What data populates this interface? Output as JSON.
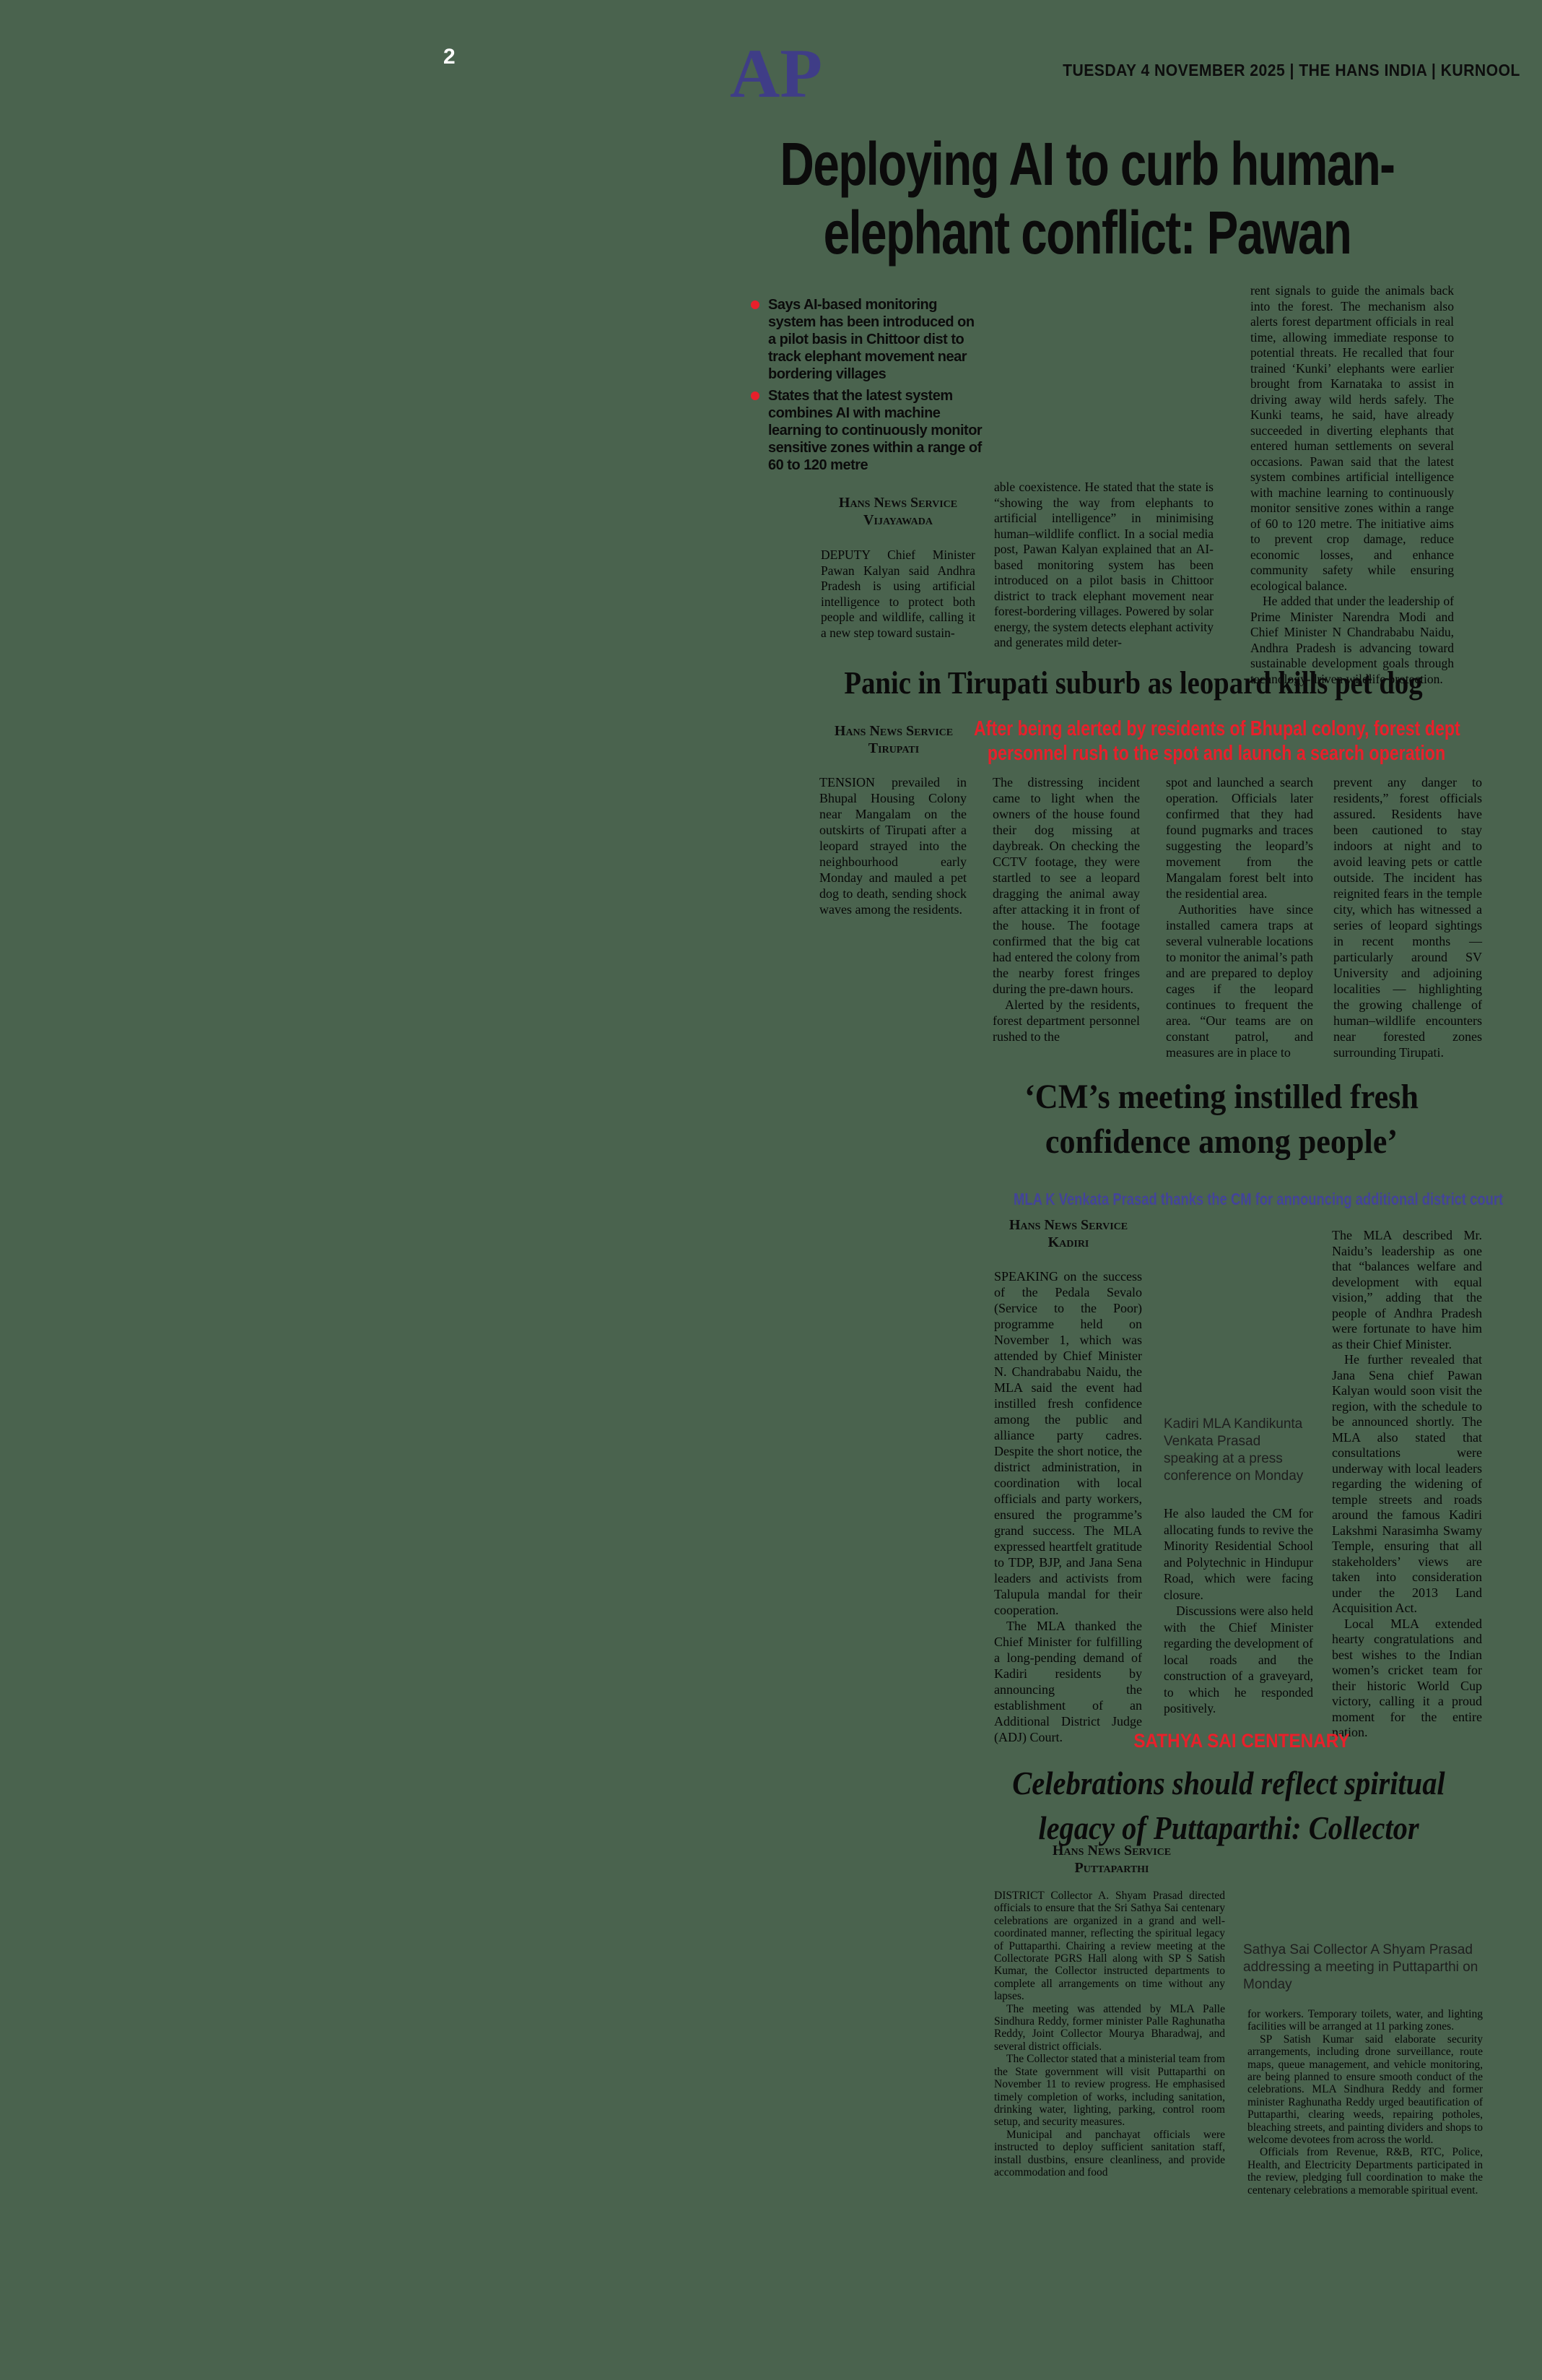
{
  "page": {
    "number": "2",
    "background": "#4a634e"
  },
  "header": {
    "logo": "AP",
    "logo_color": "#3f3d87",
    "meta": "TUESDAY 4 NOVEMBER  2025  | THE HANS INDIA | KURNOOL"
  },
  "colors": {
    "accent_red": "#e8202b",
    "subhead_blue": "#43439a",
    "logo_indigo": "#3f3d87"
  },
  "articles": [
    {
      "id": "ai-elephant-conflict",
      "headline_lines": [
        "Deploying AI to curb human-",
        "elephant conflict: Pawan"
      ],
      "bullets": [
        "Says AI-based monitoring system has been introduced on a pilot basis in Chittoor dist to track elephant movement near bordering villages",
        "States that the latest system combines AI with machine learning to continuously monitor sensitive zones within a range of 60 to 120 metre"
      ],
      "byline": {
        "agency": "Hans News Service",
        "place": "Vijayawada"
      },
      "columns": [
        {
          "paras": [
            "DEPUTY Chief Minister Pawan Kalyan said Andhra Pradesh is using artificial intelligence to protect both people and wildlife, calling it a new step toward sustain-"
          ]
        },
        {
          "paras": [
            "able coexistence. He stated that the state is “showing the way from elephants to artificial intelligence” in minimising human–wildlife conflict. In a social media post, Pawan Kalyan explained that an AI-based monitoring system has been introduced on a pilot basis in Chittoor district to track elephant movement near forest-bordering villages. Powered by solar energy, the system detects elephant activity and generates mild deter-"
          ]
        },
        {
          "paras": [
            "rent signals to guide the animals back into the forest. The mechanism also alerts forest department officials in real time, allowing immediate response to potential threats. He recalled that four trained ‘Kunki’ elephants were earlier brought from Karnataka to assist in driving away wild herds safely. The Kunki teams, he said, have already succeeded in diverting elephants that entered human settlements on several occasions. Pawan said that the latest system combines artificial intelligence with machine learning to continuously monitor sensitive zones within a range of 60 to 120 metre. The initiative aims to prevent crop damage, reduce economic losses, and enhance community safety while ensuring ecological balance.",
            "He added that under the leadership of Prime Minister Narendra Modi and Chief Minister N Chandrababu Naidu, Andhra Pradesh is advancing toward sustainable development goals through technology-driven wildlife protection."
          ]
        }
      ]
    },
    {
      "id": "tirupati-leopard",
      "headline": "Panic in Tirupati suburb as leopard kills pet dog",
      "subhead_lines": [
        "After being alerted by residents of Bhupal colony, forest dept",
        "personnel rush to the spot and launch a search operation"
      ],
      "byline": {
        "agency": "Hans News Service",
        "place": "Tirupati"
      },
      "columns": [
        {
          "paras": [
            "TENSION prevailed in Bhupal Housing Colony near Mangalam on the outskirts of Tirupati after a leopard strayed into the neighbourhood early Monday and mauled a pet dog to death, sending shock waves among the residents."
          ]
        },
        {
          "paras": [
            "The distressing incident came to light when the owners of the house found their dog missing at daybreak. On checking the CCTV footage, they were startled to see a leopard dragging the animal away after attacking it in front of the house. The footage confirmed that the big cat had entered the colony from the nearby forest fringes during the pre-dawn hours.",
            "Alerted by the residents, forest department personnel rushed to the"
          ]
        },
        {
          "paras": [
            "spot and launched a search operation. Officials later confirmed that they had found pugmarks and traces suggesting the leopard’s movement from the Mangalam forest belt into the residential area.",
            "Authorities have since installed camera traps at several vulnerable locations to monitor the animal’s path and are prepared to deploy cages if the leopard continues to frequent the area. “Our teams are on constant patrol, and measures are in place to"
          ]
        },
        {
          "paras": [
            "prevent any danger to residents,” forest officials assured. Residents have been cautioned to stay indoors at night and to avoid leaving pets or cattle outside. The incident has reignited fears in the temple city, which has witnessed a series of leopard sightings in recent months — particularly around SV University and adjoining localities — highlighting the growing challenge of human–wildlife encounters near forested zones surrounding Tirupati."
          ]
        }
      ]
    },
    {
      "id": "cm-meeting-kadiri",
      "headline_lines": [
        "‘CM’s meeting instilled fresh",
        "confidence among people’"
      ],
      "subhead": "MLA K Venkata Prasad thanks the CM for announcing additional district court",
      "byline": {
        "agency": "Hans News Service",
        "place": "Kadiri"
      },
      "photo_caption": "Kadiri MLA Kandikunta Venkata Prasad speaking at a press conference on Monday",
      "columns": [
        {
          "paras": [
            "SPEAKING on the success of the Pedala Sevalo (Service to the Poor) programme held on November 1, which was attended by Chief Minister N. Chandrababu Naidu, the MLA said the event had instilled fresh confidence among the public and alliance party cadres. Despite the short notice, the district administration, in coordination with local officials and party workers, ensured the programme’s grand success. The MLA expressed heartfelt gratitude to TDP, BJP, and Jana Sena leaders and activists from Talupula mandal for their cooperation.",
            "The MLA thanked the Chief Minister for fulfilling a long-pending demand of Kadiri residents by announcing the establishment of an Additional District Judge (ADJ) Court."
          ]
        },
        {
          "paras": [
            "He also lauded the CM for allocating funds to revive the Minority Residential School and Polytechnic in Hindupur Road, which were facing closure.",
            "Discussions were also held with the Chief Minister regarding the development of local roads and the construction of a graveyard, to which he responded positively."
          ]
        },
        {
          "paras": [
            "The MLA described Mr. Naidu’s leadership as one that “balances welfare and development with equal vision,” adding that the people of Andhra Pradesh were fortunate to have him as their Chief Minister.",
            "He further revealed that Jana Sena chief Pawan Kalyan would soon visit the region, with the schedule to be announced shortly. The MLA also stated that consultations were underway with local leaders regarding the widening of temple streets and roads around the famous Kadiri Lakshmi Narasimha Swamy Temple, ensuring that all stakeholders’ views are taken into consideration under the 2013 Land Acquisition Act.",
            "Local MLA extended hearty congratulations and best wishes to the Indian women’s cricket team for their historic World Cup victory, calling it a proud moment for the entire nation."
          ]
        }
      ]
    },
    {
      "id": "sathya-sai-centenary",
      "kicker": "SATHYA SAI CENTENARY",
      "headline_lines": [
        "Celebrations should reflect spiritual",
        "legacy of Puttaparthi: Collector"
      ],
      "byline": {
        "agency": "Hans News Service",
        "place": "Puttaparthi"
      },
      "photo_caption": "Sathya Sai Collector A Shyam Prasad addressing a meeting in Puttaparthi on Monday",
      "columns": [
        {
          "paras": [
            "DISTRICT Collector A. Shyam Prasad directed officials to ensure that the Sri Sathya Sai centenary celebrations are organized in a grand and well-coordinated manner, reflecting the spiritual legacy of Puttaparthi. Chairing a review meeting at the Collectorate PGRS Hall along with SP S Satish Kumar, the Collector instructed departments to complete all arrangements on time without any lapses.",
            "The meeting was attended by MLA Palle Sindhura Reddy, former minister Palle Raghunatha Reddy, Joint Collector Mourya Bharadwaj, and several district officials.",
            "The Collector stated that a ministerial team from the State government will visit Puttaparthi on November 11 to review progress. He emphasised timely completion of works, including sanitation, drinking water, lighting, parking, control room setup, and security measures.",
            "Municipal and panchayat officials were instructed to deploy sufficient sanitation staff, install dustbins, ensure cleanliness, and provide accommodation and food"
          ]
        },
        {
          "paras": [
            "for workers. Temporary toilets, water, and lighting facilities will be arranged at 11 parking zones.",
            "SP Satish Kumar said elaborate security arrangements, including drone surveillance, route maps, queue management, and vehicle monitoring, are being planned to ensure smooth conduct of the celebrations. MLA Sindhura Reddy and former minister Raghunatha Reddy urged beautification of Puttaparthi, clearing weeds, repairing potholes, bleaching streets, and painting dividers and shops to welcome devotees from across the world.",
            "Officials from Revenue, R&B, RTC, Police, Health, and Electricity Departments participated in the review, pledging full coordination to make the centenary celebrations a memorable spiritual event."
          ]
        }
      ]
    }
  ]
}
